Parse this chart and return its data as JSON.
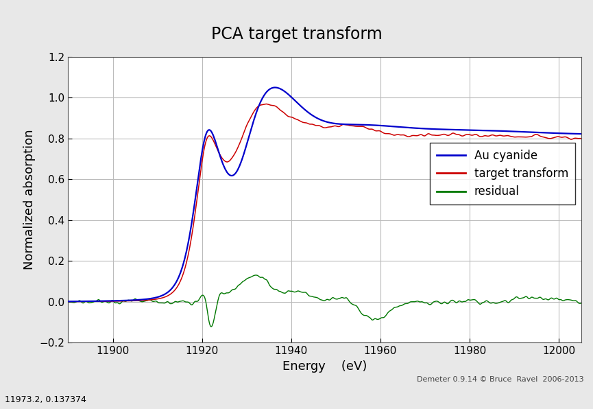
{
  "title": "PCA target transform",
  "xlabel": "Energy    (eV)",
  "ylabel": "Normalized absorption",
  "xlim": [
    11890,
    12005
  ],
  "ylim": [
    -0.2,
    1.2
  ],
  "xticks": [
    11900,
    11920,
    11940,
    11960,
    11980,
    12000
  ],
  "yticks": [
    -0.2,
    0.0,
    0.2,
    0.4,
    0.6,
    0.8,
    1.0,
    1.2
  ],
  "legend_labels": [
    "Au cyanide",
    "target transform",
    "residual"
  ],
  "line_colors": [
    "#0000cc",
    "#cc0000",
    "#007700"
  ],
  "background_color": "#e8e8e8",
  "plot_bg_color": "#ffffff",
  "grid_color": "#bbbbbb",
  "toolbar_color": "#d4d0c8",
  "footer_text": "Demeter 0.9.14 © Bruce  Ravel  2006-2013",
  "status_text": "11973.2, 0.137374",
  "title_fontsize": 17,
  "label_fontsize": 13,
  "tick_fontsize": 11,
  "legend_fontsize": 12
}
